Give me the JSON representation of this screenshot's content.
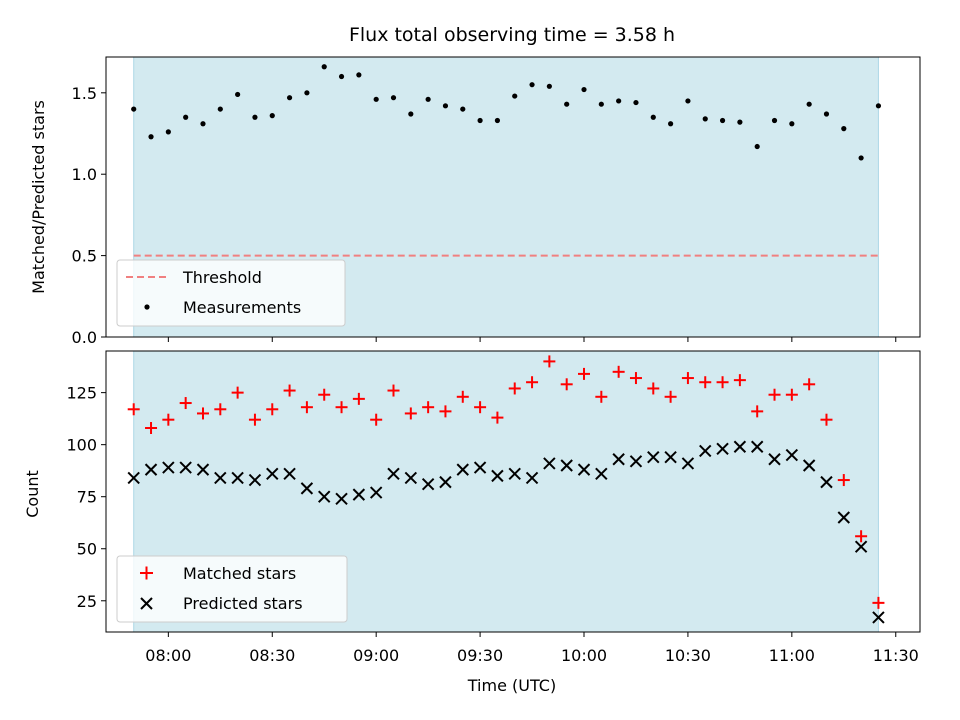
{
  "title": "Flux total observing time = 3.58 h",
  "colors": {
    "band": "#d3eaf0",
    "band_edge": "#add8e6",
    "threshold": "#f08080",
    "measurement": "#000000",
    "matched": "#ff0000",
    "predicted": "#000000"
  },
  "chart_data": [
    {
      "type": "scatter",
      "panel": "top",
      "xlabel": "",
      "ylabel": "Matched/Predicted stars",
      "xlim": [
        "07:42",
        "11:37"
      ],
      "ylim": [
        0,
        1.72
      ],
      "yticks": [
        0.0,
        0.5,
        1.0,
        1.5
      ],
      "ytick_labels": [
        "0.0",
        "0.5",
        "1.0",
        "1.5"
      ],
      "xticks": [
        "08:00",
        "08:30",
        "09:00",
        "09:30",
        "10:00",
        "10:30",
        "11:00",
        "11:30"
      ],
      "xtick_labels": [],
      "grid": false,
      "legend": "lower-left",
      "shaded_span": [
        "07:50",
        "11:25"
      ],
      "threshold": {
        "name": "Threshold",
        "y": 0.5,
        "x_range": [
          "07:50",
          "11:25"
        ]
      },
      "series": [
        {
          "name": "Measurements",
          "marker": "dot",
          "x": [
            "07:50",
            "07:55",
            "08:00",
            "08:05",
            "08:10",
            "08:15",
            "08:20",
            "08:25",
            "08:30",
            "08:35",
            "08:40",
            "08:45",
            "08:50",
            "08:55",
            "09:00",
            "09:05",
            "09:10",
            "09:15",
            "09:20",
            "09:25",
            "09:30",
            "09:35",
            "09:40",
            "09:45",
            "09:50",
            "09:55",
            "10:00",
            "10:05",
            "10:10",
            "10:15",
            "10:20",
            "10:25",
            "10:30",
            "10:35",
            "10:40",
            "10:45",
            "10:50",
            "10:55",
            "11:00",
            "11:05",
            "11:10",
            "11:15",
            "11:20",
            "11:25"
          ],
          "y": [
            1.4,
            1.23,
            1.26,
            1.35,
            1.31,
            1.4,
            1.49,
            1.35,
            1.36,
            1.47,
            1.5,
            1.66,
            1.6,
            1.61,
            1.46,
            1.47,
            1.37,
            1.46,
            1.42,
            1.4,
            1.33,
            1.33,
            1.48,
            1.55,
            1.54,
            1.43,
            1.52,
            1.43,
            1.45,
            1.44,
            1.35,
            1.31,
            1.45,
            1.34,
            1.33,
            1.32,
            1.17,
            1.33,
            1.31,
            1.43,
            1.37,
            1.28,
            1.1,
            1.42
          ]
        }
      ]
    },
    {
      "type": "scatter",
      "panel": "bottom",
      "xlabel": "Time (UTC)",
      "ylabel": "Count",
      "xlim": [
        "07:42",
        "11:37"
      ],
      "ylim": [
        10,
        145
      ],
      "yticks": [
        25,
        50,
        75,
        100,
        125
      ],
      "ytick_labels": [
        "25",
        "50",
        "75",
        "100",
        "125"
      ],
      "xticks": [
        "08:00",
        "08:30",
        "09:00",
        "09:30",
        "10:00",
        "10:30",
        "11:00",
        "11:30"
      ],
      "xtick_labels": [
        "08:00",
        "08:30",
        "09:00",
        "09:30",
        "10:00",
        "10:30",
        "11:00",
        "11:30"
      ],
      "grid": false,
      "legend": "lower-left",
      "shaded_span": [
        "07:50",
        "11:25"
      ],
      "series": [
        {
          "name": "Matched stars",
          "marker": "plus",
          "x": [
            "07:50",
            "07:55",
            "08:00",
            "08:05",
            "08:10",
            "08:15",
            "08:20",
            "08:25",
            "08:30",
            "08:35",
            "08:40",
            "08:45",
            "08:50",
            "08:55",
            "09:00",
            "09:05",
            "09:10",
            "09:15",
            "09:20",
            "09:25",
            "09:30",
            "09:35",
            "09:40",
            "09:45",
            "09:50",
            "09:55",
            "10:00",
            "10:05",
            "10:10",
            "10:15",
            "10:20",
            "10:25",
            "10:30",
            "10:35",
            "10:40",
            "10:45",
            "10:50",
            "10:55",
            "11:00",
            "11:05",
            "11:10",
            "11:15",
            "11:20",
            "11:25"
          ],
          "y": [
            117,
            108,
            112,
            120,
            115,
            117,
            125,
            112,
            117,
            126,
            118,
            124,
            118,
            122,
            112,
            126,
            115,
            118,
            116,
            123,
            118,
            113,
            127,
            130,
            140,
            129,
            134,
            123,
            135,
            132,
            127,
            123,
            132,
            130,
            130,
            131,
            116,
            124,
            124,
            129,
            112,
            83,
            56,
            24
          ]
        },
        {
          "name": "Predicted stars",
          "marker": "x",
          "x": [
            "07:50",
            "07:55",
            "08:00",
            "08:05",
            "08:10",
            "08:15",
            "08:20",
            "08:25",
            "08:30",
            "08:35",
            "08:40",
            "08:45",
            "08:50",
            "08:55",
            "09:00",
            "09:05",
            "09:10",
            "09:15",
            "09:20",
            "09:25",
            "09:30",
            "09:35",
            "09:40",
            "09:45",
            "09:50",
            "09:55",
            "10:00",
            "10:05",
            "10:10",
            "10:15",
            "10:20",
            "10:25",
            "10:30",
            "10:35",
            "10:40",
            "10:45",
            "10:50",
            "10:55",
            "11:00",
            "11:05",
            "11:10",
            "11:15",
            "11:20",
            "11:25"
          ],
          "y": [
            84,
            88,
            89,
            89,
            88,
            84,
            84,
            83,
            86,
            86,
            79,
            75,
            74,
            76,
            77,
            86,
            84,
            81,
            82,
            88,
            89,
            85,
            86,
            84,
            91,
            90,
            88,
            86,
            93,
            92,
            94,
            94,
            91,
            97,
            98,
            99,
            99,
            93,
            95,
            90,
            82,
            65,
            51,
            17
          ]
        }
      ]
    }
  ]
}
